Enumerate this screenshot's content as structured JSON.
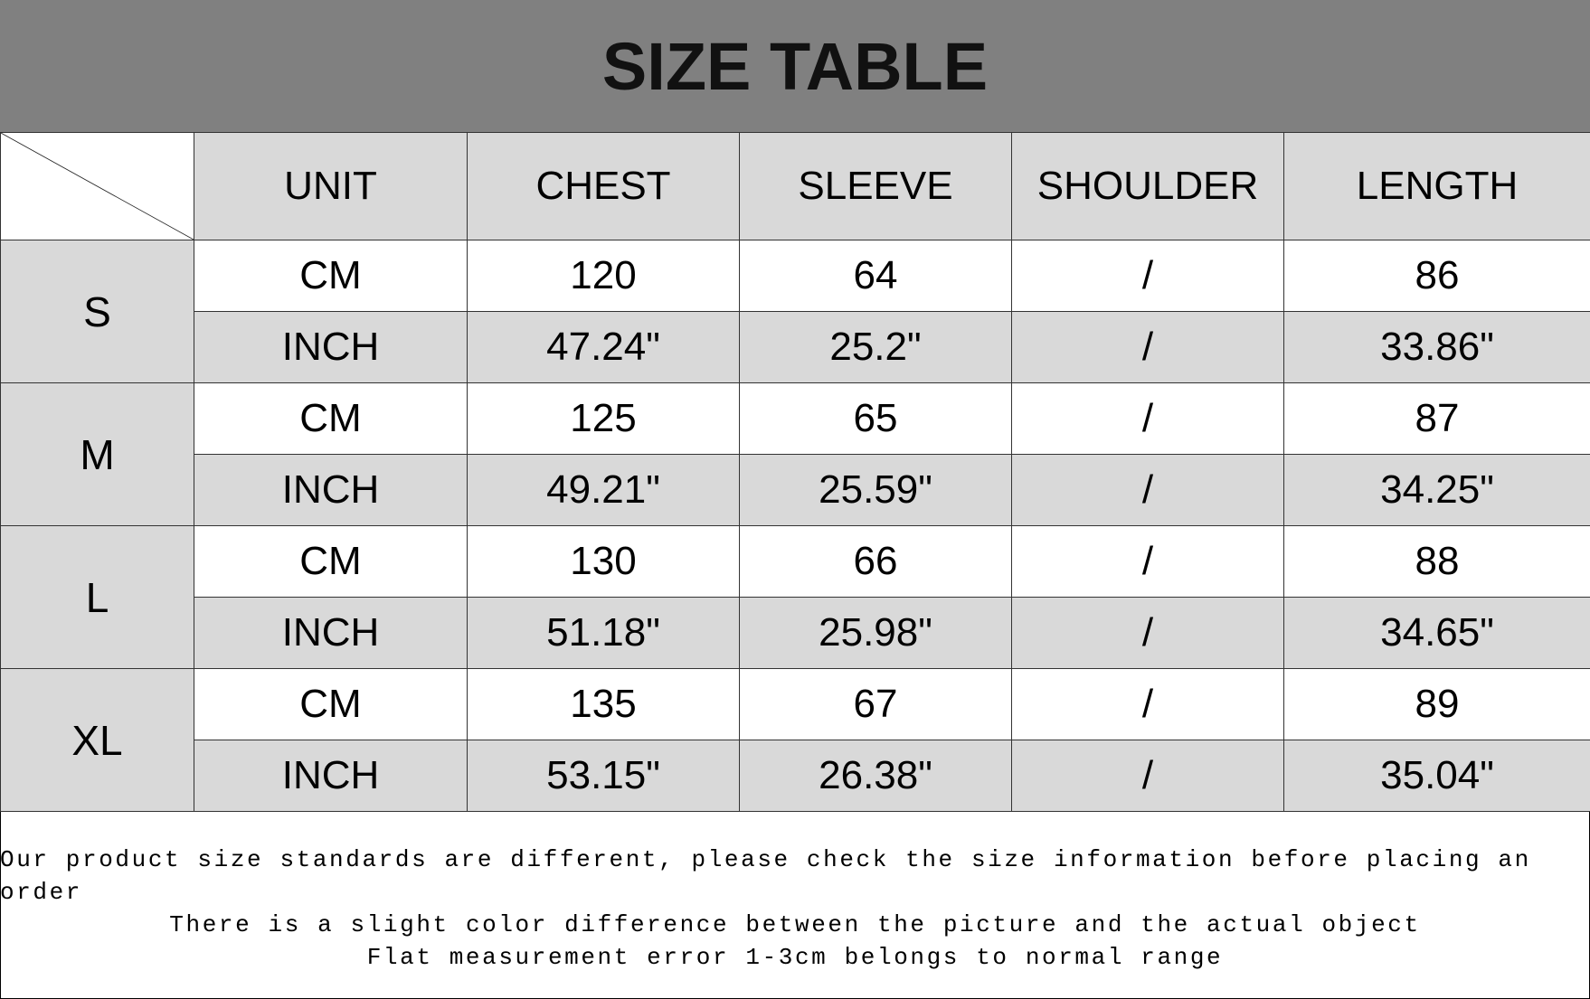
{
  "title": "SIZE TABLE",
  "headers": [
    "UNIT",
    "CHEST",
    "SLEEVE",
    "SHOULDER",
    "LENGTH"
  ],
  "sizes": [
    {
      "size": "S",
      "cm": [
        "CM",
        "120",
        "64",
        "/",
        "86"
      ],
      "inch": [
        "INCH",
        "47.24\"",
        "25.2\"",
        "/",
        "33.86\""
      ]
    },
    {
      "size": "M",
      "cm": [
        "CM",
        "125",
        "65",
        "/",
        "87"
      ],
      "inch": [
        "INCH",
        "49.21\"",
        "25.59\"",
        "/",
        "34.25\""
      ]
    },
    {
      "size": "L",
      "cm": [
        "CM",
        "130",
        "66",
        "/",
        "88"
      ],
      "inch": [
        "INCH",
        "51.18\"",
        "25.98\"",
        "/",
        "34.65\""
      ]
    },
    {
      "size": "XL",
      "cm": [
        "CM",
        "135",
        "67",
        "/",
        "89"
      ],
      "inch": [
        "INCH",
        "53.15\"",
        "26.38\"",
        "/",
        "35.04\""
      ]
    }
  ],
  "notes": [
    "Our product size standards are different, please check the size information before placing an order",
    "There is a slight color difference between the picture and the actual object",
    "Flat measurement error 1-3cm belongs to normal range"
  ],
  "colors": {
    "title_bg": "#808080",
    "cell_gray": "#d9d9d9",
    "cell_white": "#ffffff"
  }
}
